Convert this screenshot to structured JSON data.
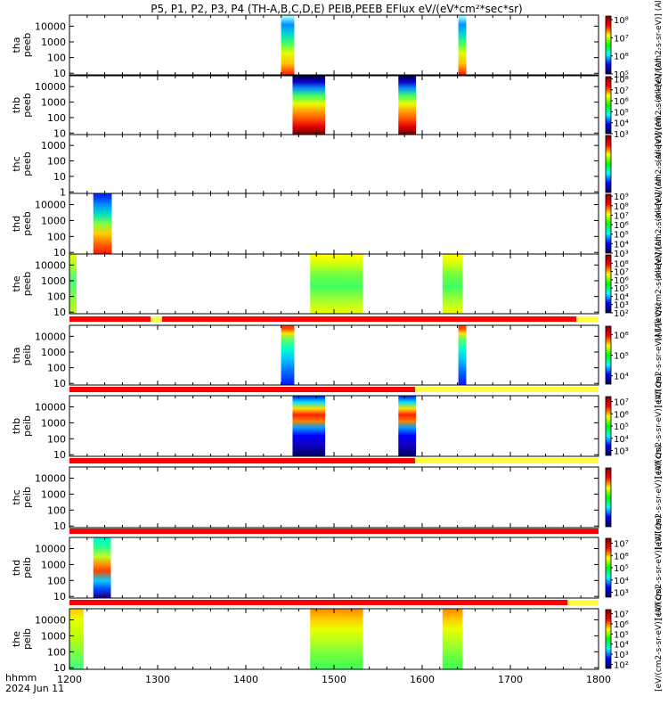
{
  "chart_data": {
    "type": "heatmap",
    "title": "P5, P1, P2, P3, P4 (TH-A,B,C,D,E) PEIB,PEEB EFlux eV/(eV*cm²*sec*sr)",
    "time_label_line1": "hhmm",
    "time_label_line2": "2024 Jun 11",
    "xlim": [
      1200,
      1800
    ],
    "xticks": [
      "1200",
      "1300",
      "1400",
      "1500",
      "1600",
      "1700",
      "1800"
    ],
    "colorbar_colors": [
      "#000050",
      "#0000ff",
      "#00ffff",
      "#00ff00",
      "#ffff00",
      "#ff0000",
      "#800000"
    ],
    "panels": [
      {
        "name": "tha peeb",
        "ylabel": [
          "tha",
          "peeb"
        ],
        "yticks": [
          "10000",
          "1000",
          "100",
          "10"
        ],
        "ylog": [
          0.9,
          4.7
        ],
        "colorbar": {
          "label": "(All [eV/(cm2-s-sr-eV)] (All ...",
          "ticks": [
            "10⁸",
            "10⁷",
            "10⁶",
            "10⁵"
          ],
          "log": [
            5,
            8.2
          ]
        },
        "blocks": [
          {
            "t0": 1440,
            "t1": 1455,
            "profile": [
              [
                1.0,
                "#ff3000"
              ],
              [
                1.6,
                "#ffc000"
              ],
              [
                2.3,
                "#e0ff00"
              ],
              [
                2.9,
                "#40ff60"
              ],
              [
                3.5,
                "#00d8d0"
              ],
              [
                4.1,
                "#0090ff"
              ],
              [
                4.6,
                "#a0ffff"
              ]
            ]
          },
          {
            "t0": 1641,
            "t1": 1650,
            "profile": [
              [
                1.0,
                "#ff3000"
              ],
              [
                1.6,
                "#ffc000"
              ],
              [
                2.3,
                "#e0ff00"
              ],
              [
                2.9,
                "#40ff60"
              ],
              [
                3.5,
                "#00d8d0"
              ],
              [
                4.1,
                "#0090ff"
              ],
              [
                4.6,
                "#a0ffff"
              ]
            ]
          }
        ]
      },
      {
        "name": "thb peeb",
        "ylabel": [
          "thb",
          "peeb"
        ],
        "yticks": [
          "10000",
          "1000",
          "100",
          "10"
        ],
        "ylog": [
          0.9,
          4.7
        ],
        "colorbar": {
          "label": "(All [eV/(cm2-s-sr-eV)] (All ...",
          "ticks": [
            "10⁸",
            "10⁷",
            "10⁶",
            "10⁵",
            "10⁴",
            "10³"
          ],
          "log": [
            3,
            8.2
          ]
        },
        "blocks": [
          {
            "t0": 1453,
            "t1": 1490,
            "profile": [
              [
                1.0,
                "#800000"
              ],
              [
                1.4,
                "#e00000"
              ],
              [
                1.9,
                "#ff5000"
              ],
              [
                2.4,
                "#ffa000"
              ],
              [
                2.9,
                "#e8ff00"
              ],
              [
                3.4,
                "#40ff60"
              ],
              [
                3.9,
                "#0090ff"
              ],
              [
                4.3,
                "#1000c0"
              ],
              [
                4.6,
                "#000070"
              ]
            ]
          },
          {
            "t0": 1573,
            "t1": 1593,
            "profile": [
              [
                1.0,
                "#800000"
              ],
              [
                1.4,
                "#e00000"
              ],
              [
                1.9,
                "#ff5000"
              ],
              [
                2.4,
                "#ffa000"
              ],
              [
                2.9,
                "#e8ff00"
              ],
              [
                3.4,
                "#40ff60"
              ],
              [
                3.9,
                "#0090ff"
              ],
              [
                4.3,
                "#1000c0"
              ],
              [
                4.6,
                "#000070"
              ]
            ]
          }
        ]
      },
      {
        "name": "thc peeb",
        "ylabel": [
          "thc",
          "peeb"
        ],
        "yticks": [
          "1000",
          "100",
          "10",
          "1"
        ],
        "ylog": [
          -0.1,
          3.7
        ],
        "colorbar": {
          "label": "(All [eV/(cm2-s-sr-eV)] (All ...",
          "ticks": [],
          "log": [
            3,
            8
          ]
        },
        "blocks": []
      },
      {
        "name": "thd peeb",
        "ylabel": [
          "thd",
          "peeb"
        ],
        "yticks": [
          "10000",
          "1000",
          "100",
          "10"
        ],
        "ylog": [
          0.9,
          4.7
        ],
        "colorbar": {
          "label": "(All [eV/(cm2-s-sr-eV)] (All ...",
          "ticks": [
            "10⁹",
            "10⁸",
            "10⁷",
            "10⁶",
            "10⁵",
            "10⁴",
            "10³"
          ],
          "log": [
            3,
            9.2
          ]
        },
        "blocks": [
          {
            "t0": 1227,
            "t1": 1248,
            "profile": [
              [
                1.0,
                "#ff2000"
              ],
              [
                1.6,
                "#ff7000"
              ],
              [
                2.2,
                "#ffd000"
              ],
              [
                2.8,
                "#80ff40"
              ],
              [
                3.4,
                "#00e0c0"
              ],
              [
                4.0,
                "#0090ff"
              ],
              [
                4.5,
                "#0030ff"
              ]
            ]
          }
        ]
      },
      {
        "name": "the peeb",
        "ylabel": [
          "the",
          "peeb"
        ],
        "yticks": [
          "10000",
          "1000",
          "100",
          "10"
        ],
        "ylog": [
          0.9,
          4.7
        ],
        "colorbar": {
          "label": "(All [eV/(cm2-s-sr-eV)] (All ...",
          "ticks": [
            "10⁸",
            "10⁷",
            "10⁶",
            "10⁵",
            "10⁴",
            "10³",
            "10²"
          ],
          "log": [
            2,
            9
          ]
        },
        "blocks": [
          {
            "t0": 1200,
            "t1": 1208,
            "profile": [
              [
                1.0,
                "#c0ff00"
              ],
              [
                2.0,
                "#80ff40"
              ],
              [
                3.0,
                "#40ff80"
              ],
              [
                4.0,
                "#b0ff20"
              ],
              [
                4.6,
                "#e0ff00"
              ]
            ]
          },
          {
            "t0": 1473,
            "t1": 1533,
            "profile": [
              [
                1.0,
                "#e8ff00"
              ],
              [
                1.8,
                "#a0ff30"
              ],
              [
                2.6,
                "#40ff60"
              ],
              [
                3.4,
                "#70ff40"
              ],
              [
                4.0,
                "#c8ff10"
              ],
              [
                4.6,
                "#ffff00"
              ]
            ]
          },
          {
            "t0": 1623,
            "t1": 1646,
            "profile": [
              [
                1.0,
                "#e8ff00"
              ],
              [
                1.8,
                "#a0ff30"
              ],
              [
                2.6,
                "#40ff60"
              ],
              [
                3.4,
                "#70ff40"
              ],
              [
                4.0,
                "#c8ff10"
              ],
              [
                4.6,
                "#ffff00"
              ]
            ]
          }
        ]
      },
      {
        "name": "tha peib",
        "ylabel": [
          "tha",
          "peib"
        ],
        "yticks": [
          "10000",
          "1000",
          "100",
          "10"
        ],
        "ylog": [
          0.9,
          4.7
        ],
        "bar": [
          {
            "t0": 1200,
            "t1": 1292,
            "color": "#ff0000"
          },
          {
            "t0": 1292,
            "t1": 1305,
            "color": "#ffff40"
          },
          {
            "t0": 1305,
            "t1": 1775,
            "color": "#ff0000"
          },
          {
            "t0": 1775,
            "t1": 1800,
            "color": "#ffff40"
          }
        ],
        "colorbar": {
          "label": "[eV/(cm2-s-sr-eV)] (All Qs)",
          "ticks": [
            "10⁶",
            "10⁵",
            "10⁴"
          ],
          "log": [
            3.6,
            6.4
          ]
        },
        "blocks": [
          {
            "t0": 1440,
            "t1": 1455,
            "profile": [
              [
                1.0,
                "#0020ff"
              ],
              [
                1.8,
                "#0070ff"
              ],
              [
                2.5,
                "#00c0ff"
              ],
              [
                3.2,
                "#00ffd0"
              ],
              [
                3.8,
                "#60ff60"
              ],
              [
                4.2,
                "#ffe000"
              ],
              [
                4.5,
                "#ff4000"
              ]
            ]
          },
          {
            "t0": 1641,
            "t1": 1650,
            "profile": [
              [
                1.0,
                "#0020ff"
              ],
              [
                1.8,
                "#0070ff"
              ],
              [
                2.5,
                "#00c0ff"
              ],
              [
                3.2,
                "#00ffd0"
              ],
              [
                3.8,
                "#60ff60"
              ],
              [
                4.2,
                "#ffe000"
              ],
              [
                4.5,
                "#ff4000"
              ]
            ]
          }
        ]
      },
      {
        "name": "thb peib",
        "ylabel": [
          "thb",
          "peib"
        ],
        "yticks": [
          "10000",
          "1000",
          "100",
          "10"
        ],
        "ylog": [
          0.9,
          4.7
        ],
        "bar": [
          {
            "t0": 1200,
            "t1": 1592,
            "color": "#ff0000"
          },
          {
            "t0": 1592,
            "t1": 1800,
            "color": "#ffff40"
          }
        ],
        "colorbar": {
          "label": "[eV/(cm2-s-sr-eV)] (All Qs)",
          "ticks": [
            "10⁷",
            "10⁶",
            "10⁵",
            "10⁴",
            "10³"
          ],
          "log": [
            2.6,
            7.4
          ]
        },
        "blocks": [
          {
            "t0": 1453,
            "t1": 1490,
            "profile": [
              [
                1.0,
                "#000070"
              ],
              [
                1.6,
                "#1000c0"
              ],
              [
                2.2,
                "#0000ff"
              ],
              [
                2.7,
                "#00a0ff"
              ],
              [
                3.1,
                "#ff8000"
              ],
              [
                3.5,
                "#ff2000"
              ],
              [
                3.9,
                "#ffe000"
              ],
              [
                4.3,
                "#00e0ff"
              ],
              [
                4.6,
                "#0040ff"
              ]
            ]
          },
          {
            "t0": 1573,
            "t1": 1593,
            "profile": [
              [
                1.0,
                "#000070"
              ],
              [
                1.6,
                "#1000c0"
              ],
              [
                2.2,
                "#0000ff"
              ],
              [
                2.7,
                "#00a0ff"
              ],
              [
                3.1,
                "#ff8000"
              ],
              [
                3.5,
                "#ff2000"
              ],
              [
                3.9,
                "#ffe000"
              ],
              [
                4.3,
                "#00e0ff"
              ],
              [
                4.6,
                "#0040ff"
              ]
            ]
          }
        ]
      },
      {
        "name": "thc peib",
        "ylabel": [
          "thc",
          "peib"
        ],
        "yticks": [
          "10000",
          "1000",
          "100",
          "10"
        ],
        "ylog": [
          0.9,
          4.7
        ],
        "bar": [
          {
            "t0": 1200,
            "t1": 1592,
            "color": "#ff0000"
          },
          {
            "t0": 1592,
            "t1": 1800,
            "color": "#ffff40"
          }
        ],
        "colorbar": {
          "label": "[eV/(cm2-s-sr-eV)] (All Qs)",
          "ticks": [],
          "log": [
            3,
            8
          ]
        },
        "blocks": []
      },
      {
        "name": "thd peib",
        "ylabel": [
          "thd",
          "peib"
        ],
        "yticks": [
          "10000",
          "1000",
          "100",
          "10"
        ],
        "ylog": [
          0.9,
          4.7
        ],
        "bar": [
          {
            "t0": 1200,
            "t1": 1800,
            "color": "#ff0000"
          }
        ],
        "colorbar": {
          "label": "[eV/(cm2-s-sr-eV)] (All Qs)",
          "ticks": [
            "10⁷",
            "10⁶",
            "10⁵",
            "10⁴",
            "10³"
          ],
          "log": [
            2.6,
            7.4
          ]
        },
        "blocks": [
          {
            "t0": 1227,
            "t1": 1247,
            "profile": [
              [
                1.0,
                "#2000a0"
              ],
              [
                1.5,
                "#0050ff"
              ],
              [
                2.0,
                "#00d0ff"
              ],
              [
                2.6,
                "#ff4000"
              ],
              [
                3.0,
                "#ff9000"
              ],
              [
                3.5,
                "#c0ff20"
              ],
              [
                4.0,
                "#40ff80"
              ],
              [
                4.5,
                "#00ffc0"
              ]
            ]
          }
        ]
      },
      {
        "name": "the peib",
        "ylabel": [
          "the",
          "peib"
        ],
        "yticks": [
          "10000",
          "1000",
          "100",
          "10"
        ],
        "ylog": [
          0.9,
          4.7
        ],
        "bar": [
          {
            "t0": 1200,
            "t1": 1765,
            "color": "#ff0000"
          },
          {
            "t0": 1765,
            "t1": 1800,
            "color": "#ffff40"
          }
        ],
        "colorbar": {
          "label": "[eV/(cm2-s-sr-eV)] (All Qs)",
          "ticks": [
            "10⁷",
            "10⁶",
            "10⁵",
            "10⁴",
            "10³",
            "10²"
          ],
          "log": [
            1.6,
            7.4
          ]
        },
        "blocks": [
          {
            "t0": 1200,
            "t1": 1216,
            "profile": [
              [
                1.0,
                "#40ff80"
              ],
              [
                2.0,
                "#80ff40"
              ],
              [
                3.0,
                "#c0ff00"
              ],
              [
                4.0,
                "#e8ff00"
              ],
              [
                4.6,
                "#ffd000"
              ]
            ]
          },
          {
            "t0": 1473,
            "t1": 1533,
            "profile": [
              [
                1.0,
                "#40ff50"
              ],
              [
                1.8,
                "#70ff40"
              ],
              [
                2.6,
                "#b0ff20"
              ],
              [
                3.4,
                "#e8ff00"
              ],
              [
                4.0,
                "#ffd000"
              ],
              [
                4.6,
                "#ff9000"
              ]
            ]
          },
          {
            "t0": 1623,
            "t1": 1646,
            "profile": [
              [
                1.0,
                "#40ff50"
              ],
              [
                1.8,
                "#70ff40"
              ],
              [
                2.6,
                "#b0ff20"
              ],
              [
                3.4,
                "#e8ff00"
              ],
              [
                4.0,
                "#ffd000"
              ],
              [
                4.6,
                "#ff9000"
              ]
            ]
          }
        ]
      }
    ]
  }
}
